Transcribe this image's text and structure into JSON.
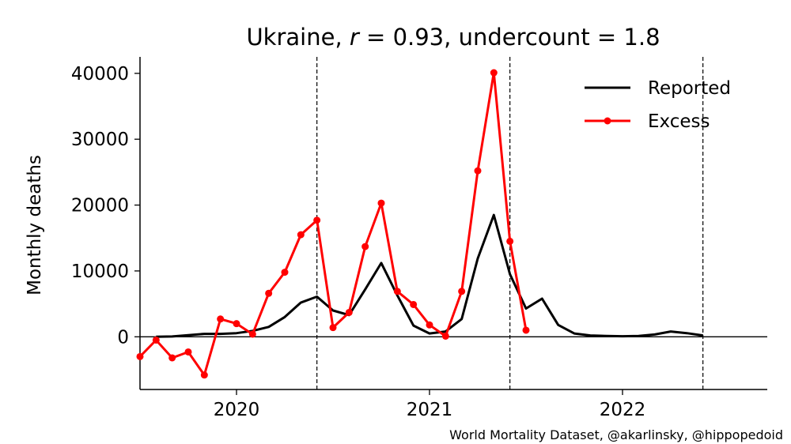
{
  "chart_data": {
    "type": "line",
    "title": "Ukraine, r = 0.93, undercount = 1.8",
    "title_parts": {
      "country": "Ukraine, ",
      "r_symbol": "r",
      "r_rest": " = 0.93, undercount = 1.8"
    },
    "xlabel": "",
    "ylabel": "Monthly deaths",
    "xlim": [
      "2019-07",
      "2022-10"
    ],
    "ylim": [
      -8000,
      42500
    ],
    "x_ticks": [
      {
        "value": "2020-01",
        "label": "2020"
      },
      {
        "value": "2021-01",
        "label": "2021"
      },
      {
        "value": "2022-01",
        "label": "2022"
      }
    ],
    "y_ticks": [
      0,
      10000,
      20000,
      30000,
      40000
    ],
    "y_tick_labels": [
      "0",
      "10000",
      "20000",
      "30000",
      "40000"
    ],
    "reference_lines": {
      "horizontal": [
        0
      ],
      "vertical_dashed": [
        "2020-06",
        "2021-06",
        "2022-06"
      ]
    },
    "grid": false,
    "legend": {
      "position": "top-right"
    },
    "series": [
      {
        "name": "Reported",
        "color": "#000000",
        "marker": false,
        "points": [
          [
            "2019-08",
            0
          ],
          [
            "2019-09",
            50
          ],
          [
            "2019-10",
            250
          ],
          [
            "2019-11",
            450
          ],
          [
            "2019-12",
            450
          ],
          [
            "2020-01",
            550
          ],
          [
            "2020-02",
            900
          ],
          [
            "2020-03",
            1500
          ],
          [
            "2020-04",
            3000
          ],
          [
            "2020-05",
            5200
          ],
          [
            "2020-06",
            6100
          ],
          [
            "2020-07",
            4000
          ],
          [
            "2020-08",
            3300
          ],
          [
            "2020-09",
            7200
          ],
          [
            "2020-10",
            11200
          ],
          [
            "2020-11",
            6300
          ],
          [
            "2020-12",
            1700
          ],
          [
            "2021-01",
            500
          ],
          [
            "2021-02",
            800
          ],
          [
            "2021-03",
            2700
          ],
          [
            "2021-04",
            11900
          ],
          [
            "2021-05",
            18500
          ],
          [
            "2021-06",
            9500
          ],
          [
            "2021-07",
            4300
          ],
          [
            "2021-08",
            5800
          ],
          [
            "2021-09",
            1800
          ],
          [
            "2021-10",
            500
          ],
          [
            "2021-11",
            200
          ],
          [
            "2021-12",
            120
          ],
          [
            "2022-01",
            80
          ],
          [
            "2022-02",
            120
          ],
          [
            "2022-03",
            350
          ],
          [
            "2022-04",
            800
          ],
          [
            "2022-05",
            550
          ],
          [
            "2022-06",
            200
          ]
        ]
      },
      {
        "name": "Excess",
        "color": "#ff0000",
        "marker": true,
        "points": [
          [
            "2019-07",
            -3000
          ],
          [
            "2019-08",
            -500
          ],
          [
            "2019-09",
            -3200
          ],
          [
            "2019-10",
            -2300
          ],
          [
            "2019-11",
            -5800
          ],
          [
            "2019-12",
            2700
          ],
          [
            "2020-01",
            2000
          ],
          [
            "2020-02",
            400
          ],
          [
            "2020-03",
            6600
          ],
          [
            "2020-04",
            9800
          ],
          [
            "2020-05",
            15500
          ],
          [
            "2020-06",
            17700
          ],
          [
            "2020-07",
            1400
          ],
          [
            "2020-08",
            3700
          ],
          [
            "2020-09",
            13700
          ],
          [
            "2020-10",
            20300
          ],
          [
            "2020-11",
            6900
          ],
          [
            "2020-12",
            4900
          ],
          [
            "2021-01",
            1800
          ],
          [
            "2021-02",
            100
          ],
          [
            "2021-03",
            6900
          ],
          [
            "2021-04",
            25200
          ],
          [
            "2021-05",
            40100
          ],
          [
            "2021-06",
            14500
          ],
          [
            "2021-07",
            1000
          ]
        ]
      }
    ],
    "credit": "World Mortality Dataset, @akarlinsky, @hippopedoid"
  }
}
